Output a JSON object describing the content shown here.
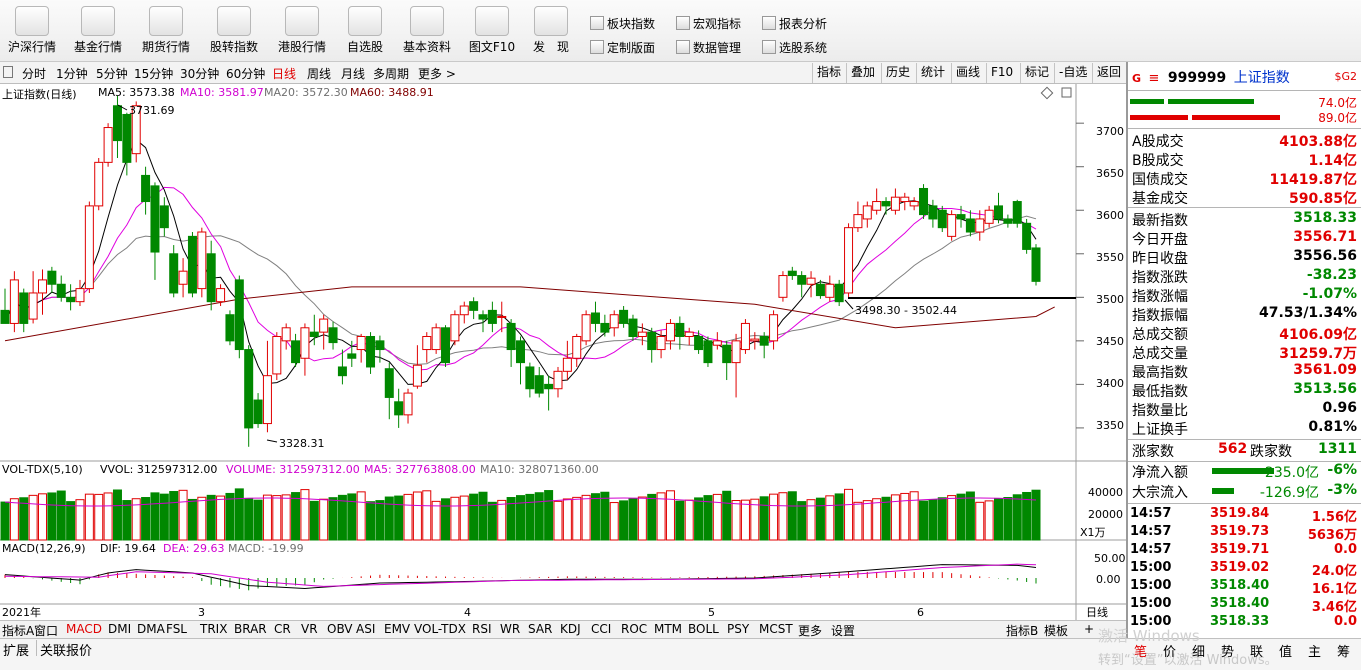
{
  "toolbar": {
    "buttons": [
      {
        "label": "沪深行情",
        "icon": "candle-chart-icon"
      },
      {
        "label": "基金行情",
        "icon": "bar-chart-icon"
      },
      {
        "label": "期货行情",
        "icon": "bar-chart-icon"
      },
      {
        "label": "股转指数",
        "icon": "wave-chart-icon"
      },
      {
        "label": "港股行情",
        "icon": "bag-chart-icon"
      },
      {
        "label": "自选股",
        "icon": "watchlist-icon"
      },
      {
        "label": "基本资料",
        "icon": "key-icon"
      },
      {
        "label": "图文F10",
        "icon": "document-icon"
      },
      {
        "label": "发　现",
        "icon": "discover-chart-icon"
      }
    ],
    "small": [
      {
        "label": "板块指数",
        "icon": "sector-index-icon"
      },
      {
        "label": "宏观指标",
        "icon": "macro-indicator-icon"
      },
      {
        "label": "报表分析",
        "icon": "report-icon"
      },
      {
        "label": "定制版面",
        "icon": "layout-icon"
      },
      {
        "label": "数据管理",
        "icon": "data-manage-icon"
      },
      {
        "label": "选股系统",
        "icon": "stock-picker-icon"
      }
    ]
  },
  "periods": {
    "items": [
      "分时",
      "1分钟",
      "5分钟",
      "15分钟",
      "30分钟",
      "60分钟",
      "日线",
      "周线",
      "月线",
      "多周期",
      "更多 >"
    ],
    "active": "日线"
  },
  "right_tools": [
    "指标",
    "叠加",
    "历史",
    "统计",
    "画线",
    "F10",
    "标记",
    "-自选",
    "返回"
  ],
  "chart": {
    "title": "上证指数(日线)",
    "ma5": "MA5: 3573.38",
    "ma10": "MA10: 3581.97",
    "ma20": "MA20: 3572.30",
    "ma60": "MA60: 3488.91",
    "high_label": "3731.69",
    "low_label": "3328.31",
    "range_label": "3498.30 - 3502.44",
    "price_ticks": [
      "3700",
      "3650",
      "3600",
      "3550",
      "3500",
      "3450",
      "3400",
      "3350"
    ],
    "vol_title": "VOL-TDX(5,10)",
    "vol_text": "VVOL: 312597312.00",
    "volume_text": "VOLUME: 312597312.00",
    "vol_ma5": "MA5: 327763808.00",
    "vol_ma10": "MA10: 328071360.00",
    "vol_ticks": [
      "40000",
      "20000"
    ],
    "vol_unit": "X1万",
    "macd_title": "MACD(12,26,9)",
    "dif": "DIF: 19.64",
    "dea": "DEA: 29.63",
    "macd": "MACD: -19.99",
    "macd_ticks": [
      "50.00",
      "0.00"
    ],
    "date_labels": [
      "2021年",
      "3",
      "4",
      "5",
      "6"
    ],
    "axis_mode": "日线",
    "colors": {
      "up": "#e00000",
      "down": "#008800",
      "ma5": "#000000",
      "ma10": "#e000e0",
      "ma20": "#808080",
      "ma60": "#800000"
    }
  },
  "chart_data": {
    "type": "candlestick",
    "title": "上证指数(日线)",
    "ylim": [
      3312,
      3745
    ],
    "candles": [
      {
        "o": 3485,
        "c": 3470,
        "h": 3510,
        "l": 3470
      },
      {
        "o": 3470,
        "c": 3520,
        "h": 3530,
        "l": 3460
      },
      {
        "o": 3505,
        "c": 3470,
        "h": 3510,
        "l": 3460
      },
      {
        "o": 3475,
        "c": 3505,
        "h": 3530,
        "l": 3470
      },
      {
        "o": 3505,
        "c": 3520,
        "h": 3532,
        "l": 3480
      },
      {
        "o": 3530,
        "c": 3515,
        "h": 3535,
        "l": 3505
      },
      {
        "o": 3515,
        "c": 3500,
        "h": 3525,
        "l": 3495
      },
      {
        "o": 3500,
        "c": 3495,
        "h": 3515,
        "l": 3485
      },
      {
        "o": 3495,
        "c": 3510,
        "h": 3520,
        "l": 3490
      },
      {
        "o": 3510,
        "c": 3605,
        "h": 3610,
        "l": 3505
      },
      {
        "o": 3605,
        "c": 3655,
        "h": 3660,
        "l": 3600
      },
      {
        "o": 3655,
        "c": 3695,
        "h": 3700,
        "l": 3650
      },
      {
        "o": 3720,
        "c": 3680,
        "h": 3731.69,
        "l": 3660
      },
      {
        "o": 3710,
        "c": 3655,
        "h": 3712,
        "l": 3640
      },
      {
        "o": 3665,
        "c": 3720,
        "h": 3725,
        "l": 3655
      },
      {
        "o": 3640,
        "c": 3610,
        "h": 3650,
        "l": 3595
      },
      {
        "o": 3628,
        "c": 3552,
        "h": 3632,
        "l": 3520
      },
      {
        "o": 3605,
        "c": 3580,
        "h": 3615,
        "l": 3570
      },
      {
        "o": 3550,
        "c": 3505,
        "h": 3560,
        "l": 3500
      },
      {
        "o": 3515,
        "c": 3530,
        "h": 3545,
        "l": 3500
      },
      {
        "o": 3570,
        "c": 3505,
        "h": 3575,
        "l": 3500
      },
      {
        "o": 3510,
        "c": 3575,
        "h": 3580,
        "l": 3500
      },
      {
        "o": 3550,
        "c": 3495,
        "h": 3565,
        "l": 3485
      },
      {
        "o": 3495,
        "c": 3510,
        "h": 3515,
        "l": 3490
      },
      {
        "o": 3480,
        "c": 3450,
        "h": 3485,
        "l": 3445
      },
      {
        "o": 3520,
        "c": 3440,
        "h": 3525,
        "l": 3430
      },
      {
        "o": 3440,
        "c": 3350,
        "h": 3445,
        "l": 3328.31
      },
      {
        "o": 3382,
        "c": 3355,
        "h": 3390,
        "l": 3350
      },
      {
        "o": 3355,
        "c": 3410,
        "h": 3450,
        "l": 3345
      },
      {
        "o": 3412,
        "c": 3455,
        "h": 3460,
        "l": 3405
      },
      {
        "o": 3450,
        "c": 3465,
        "h": 3470,
        "l": 3440
      },
      {
        "o": 3450,
        "c": 3425,
        "h": 3458,
        "l": 3420
      },
      {
        "o": 3430,
        "c": 3465,
        "h": 3470,
        "l": 3410
      },
      {
        "o": 3460,
        "c": 3455,
        "h": 3480,
        "l": 3445
      },
      {
        "o": 3460,
        "c": 3475,
        "h": 3480,
        "l": 3440
      },
      {
        "o": 3465,
        "c": 3448,
        "h": 3472,
        "l": 3440
      },
      {
        "o": 3420,
        "c": 3410,
        "h": 3440,
        "l": 3400
      },
      {
        "o": 3435,
        "c": 3430,
        "h": 3450,
        "l": 3420
      },
      {
        "o": 3440,
        "c": 3455,
        "h": 3458,
        "l": 3425
      },
      {
        "o": 3455,
        "c": 3420,
        "h": 3460,
        "l": 3412
      },
      {
        "o": 3450,
        "c": 3440,
        "h": 3456,
        "l": 3425
      },
      {
        "o": 3418,
        "c": 3385,
        "h": 3425,
        "l": 3360
      },
      {
        "o": 3380,
        "c": 3365,
        "h": 3395,
        "l": 3350
      },
      {
        "o": 3365,
        "c": 3390,
        "h": 3395,
        "l": 3355
      },
      {
        "o": 3398,
        "c": 3422,
        "h": 3445,
        "l": 3395
      },
      {
        "o": 3440,
        "c": 3455,
        "h": 3460,
        "l": 3425
      },
      {
        "o": 3440,
        "c": 3465,
        "h": 3470,
        "l": 3435
      },
      {
        "o": 3465,
        "c": 3425,
        "h": 3468,
        "l": 3420
      },
      {
        "o": 3450,
        "c": 3480,
        "h": 3485,
        "l": 3445
      },
      {
        "o": 3480,
        "c": 3490,
        "h": 3495,
        "l": 3470
      },
      {
        "o": 3495,
        "c": 3485,
        "h": 3500,
        "l": 3475
      },
      {
        "o": 3480,
        "c": 3475,
        "h": 3485,
        "l": 3460
      },
      {
        "o": 3485,
        "c": 3470,
        "h": 3495,
        "l": 3460
      },
      {
        "o": 3478,
        "c": 3478,
        "h": 3495,
        "l": 3460
      },
      {
        "o": 3470,
        "c": 3440,
        "h": 3475,
        "l": 3420
      },
      {
        "o": 3450,
        "c": 3425,
        "h": 3455,
        "l": 3400
      },
      {
        "o": 3420,
        "c": 3395,
        "h": 3425,
        "l": 3385
      },
      {
        "o": 3410,
        "c": 3390,
        "h": 3420,
        "l": 3385
      },
      {
        "o": 3400,
        "c": 3395,
        "h": 3410,
        "l": 3370
      },
      {
        "o": 3395,
        "c": 3415,
        "h": 3420,
        "l": 3385
      },
      {
        "o": 3415,
        "c": 3430,
        "h": 3450,
        "l": 3405
      },
      {
        "o": 3430,
        "c": 3455,
        "h": 3458,
        "l": 3420
      },
      {
        "o": 3450,
        "c": 3480,
        "h": 3485,
        "l": 3445
      },
      {
        "o": 3482,
        "c": 3470,
        "h": 3495,
        "l": 3460
      },
      {
        "o": 3470,
        "c": 3460,
        "h": 3480,
        "l": 3455
      },
      {
        "o": 3465,
        "c": 3480,
        "h": 3485,
        "l": 3455
      },
      {
        "o": 3485,
        "c": 3470,
        "h": 3490,
        "l": 3465
      },
      {
        "o": 3475,
        "c": 3455,
        "h": 3480,
        "l": 3450
      },
      {
        "o": 3455,
        "c": 3460,
        "h": 3470,
        "l": 3445
      },
      {
        "o": 3460,
        "c": 3440,
        "h": 3465,
        "l": 3425
      },
      {
        "o": 3440,
        "c": 3455,
        "h": 3462,
        "l": 3430
      },
      {
        "o": 3450,
        "c": 3470,
        "h": 3475,
        "l": 3440
      },
      {
        "o": 3470,
        "c": 3455,
        "h": 3478,
        "l": 3440
      },
      {
        "o": 3455,
        "c": 3460,
        "h": 3465,
        "l": 3445
      },
      {
        "o": 3455,
        "c": 3440,
        "h": 3462,
        "l": 3435
      },
      {
        "o": 3450,
        "c": 3425,
        "h": 3455,
        "l": 3420
      },
      {
        "o": 3445,
        "c": 3450,
        "h": 3460,
        "l": 3440
      },
      {
        "o": 3445,
        "c": 3425,
        "h": 3450,
        "l": 3405
      },
      {
        "o": 3425,
        "c": 3450,
        "h": 3458,
        "l": 3385
      },
      {
        "o": 3440,
        "c": 3470,
        "h": 3475,
        "l": 3435
      },
      {
        "o": 3450,
        "c": 3452,
        "h": 3460,
        "l": 3440
      },
      {
        "o": 3455,
        "c": 3445,
        "h": 3460,
        "l": 3430
      },
      {
        "o": 3450,
        "c": 3480,
        "h": 3485,
        "l": 3440
      },
      {
        "o": 3500,
        "c": 3525,
        "h": 3530,
        "l": 3495
      },
      {
        "o": 3530,
        "c": 3525,
        "h": 3535,
        "l": 3520
      },
      {
        "o": 3525,
        "c": 3515,
        "h": 3530,
        "l": 3500
      },
      {
        "o": 3515,
        "c": 3522,
        "h": 3530,
        "l": 3500
      },
      {
        "o": 3515,
        "c": 3502,
        "h": 3520,
        "l": 3498.3
      },
      {
        "o": 3500,
        "c": 3515,
        "h": 3525,
        "l": 3495
      },
      {
        "o": 3515,
        "c": 3495,
        "h": 3520,
        "l": 3490
      },
      {
        "o": 3505,
        "c": 3580,
        "h": 3585,
        "l": 3500
      },
      {
        "o": 3580,
        "c": 3595,
        "h": 3610,
        "l": 3575
      },
      {
        "o": 3590,
        "c": 3605,
        "h": 3610,
        "l": 3580
      },
      {
        "o": 3600,
        "c": 3610,
        "h": 3625,
        "l": 3595
      },
      {
        "o": 3610,
        "c": 3605,
        "h": 3615,
        "l": 3595
      },
      {
        "o": 3600,
        "c": 3615,
        "h": 3625,
        "l": 3595
      },
      {
        "o": 3610,
        "c": 3615,
        "h": 3620,
        "l": 3600
      },
      {
        "o": 3605,
        "c": 3610,
        "h": 3615,
        "l": 3600
      },
      {
        "o": 3625,
        "c": 3595,
        "h": 3630,
        "l": 3590
      },
      {
        "o": 3605,
        "c": 3590,
        "h": 3612,
        "l": 3580
      },
      {
        "o": 3600,
        "c": 3580,
        "h": 3605,
        "l": 3575
      },
      {
        "o": 3570,
        "c": 3595,
        "h": 3600,
        "l": 3565
      },
      {
        "o": 3595,
        "c": 3590,
        "h": 3605,
        "l": 3580
      },
      {
        "o": 3590,
        "c": 3575,
        "h": 3600,
        "l": 3570
      },
      {
        "o": 3575,
        "c": 3590,
        "h": 3600,
        "l": 3565
      },
      {
        "o": 3585,
        "c": 3600,
        "h": 3605,
        "l": 3580
      },
      {
        "o": 3605,
        "c": 3590,
        "h": 3620,
        "l": 3585
      },
      {
        "o": 3590,
        "c": 3585,
        "h": 3595,
        "l": 3580
      },
      {
        "o": 3610,
        "c": 3585,
        "h": 3612,
        "l": 3580
      },
      {
        "o": 3585,
        "c": 3555,
        "h": 3590,
        "l": 3550
      },
      {
        "o": 3556.71,
        "c": 3518.33,
        "h": 3561.09,
        "l": 3513.56
      }
    ],
    "ma60": [
      [
        0,
        3450
      ],
      [
        25,
        3498
      ],
      [
        37,
        3512
      ],
      [
        55,
        3512
      ],
      [
        80,
        3492
      ],
      [
        95,
        3465
      ],
      [
        110,
        3478
      ],
      [
        112,
        3489
      ]
    ],
    "macd_dif": [
      [
        0,
        8
      ],
      [
        8,
        -5
      ],
      [
        11,
        12
      ],
      [
        14,
        20
      ],
      [
        20,
        12
      ],
      [
        26,
        -18
      ],
      [
        32,
        -25
      ],
      [
        40,
        -12
      ],
      [
        50,
        -8
      ],
      [
        60,
        -3
      ],
      [
        70,
        -3
      ],
      [
        80,
        0
      ],
      [
        88,
        12
      ],
      [
        100,
        32
      ],
      [
        108,
        30
      ],
      [
        112,
        20
      ]
    ],
    "macd_dea": [
      [
        0,
        4
      ],
      [
        10,
        2
      ],
      [
        14,
        15
      ],
      [
        22,
        10
      ],
      [
        28,
        -10
      ],
      [
        34,
        -20
      ],
      [
        44,
        -13
      ],
      [
        54,
        -6
      ],
      [
        66,
        -4
      ],
      [
        80,
        -2
      ],
      [
        90,
        8
      ],
      [
        100,
        25
      ],
      [
        108,
        33
      ],
      [
        112,
        30
      ]
    ]
  },
  "right_panel": {
    "code": "999999",
    "name": "上证指数",
    "badge": "$G2",
    "bar1": "74.0亿",
    "bar2": "89.0亿",
    "rows1": [
      {
        "k": "A股成交",
        "v": "4103.88亿",
        "c": "red"
      },
      {
        "k": "B股成交",
        "v": "1.14亿",
        "c": "red"
      },
      {
        "k": "国债成交",
        "v": "11419.87亿",
        "c": "red"
      },
      {
        "k": "基金成交",
        "v": "590.85亿",
        "c": "red"
      }
    ],
    "rows2": [
      {
        "k": "最新指数",
        "v": "3518.33",
        "c": "green"
      },
      {
        "k": "今日开盘",
        "v": "3556.71",
        "c": "red"
      },
      {
        "k": "昨日收盘",
        "v": "3556.56",
        "c": "blk"
      },
      {
        "k": "指数涨跌",
        "v": "-38.23",
        "c": "green"
      },
      {
        "k": "指数涨幅",
        "v": "-1.07%",
        "c": "green"
      },
      {
        "k": "指数振幅",
        "v": "47.53/1.34%",
        "c": "blk"
      },
      {
        "k": "总成交额",
        "v": "4106.09亿",
        "c": "red"
      },
      {
        "k": "总成交量",
        "v": "31259.7万",
        "c": "red"
      },
      {
        "k": "最高指数",
        "v": "3561.09",
        "c": "red"
      },
      {
        "k": "最低指数",
        "v": "3513.56",
        "c": "green"
      },
      {
        "k": "指数量比",
        "v": "0.96",
        "c": "blk"
      },
      {
        "k": "上证换手",
        "v": "0.81%",
        "c": "blk"
      }
    ],
    "rise_label": "涨家数",
    "rise": "562",
    "fall_label": "跌家数",
    "fall": "1311",
    "flow": [
      {
        "k": "净流入额",
        "v": "-235.0亿",
        "p": "-6%"
      },
      {
        "k": "大宗流入",
        "v": "-126.9亿",
        "p": "-3%"
      }
    ],
    "ticks": [
      {
        "t": "14:57",
        "p": "3519.84",
        "v": "1.56亿"
      },
      {
        "t": "14:57",
        "p": "3519.73",
        "v": "5636万"
      },
      {
        "t": "14:57",
        "p": "3519.71",
        "v": "0.0"
      },
      {
        "t": "15:00",
        "p": "3519.02",
        "v": "24.0亿"
      },
      {
        "t": "15:00",
        "p": "3518.40",
        "v": "16.1亿"
      },
      {
        "t": "15:00",
        "p": "3518.40",
        "v": "3.46亿"
      },
      {
        "t": "15:00",
        "p": "3518.33",
        "v": "0.0"
      }
    ]
  },
  "bottom_tabs": [
    "指标A",
    "窗口",
    "MACD",
    "DMI",
    "DMA",
    "FSL",
    "TRIX",
    "BRAR",
    "CR",
    "VR",
    "OBV",
    "ASI",
    "EMV",
    "VOL-TDX",
    "RSI",
    "WR",
    "SAR",
    "KDJ",
    "CCI",
    "ROC",
    "MTM",
    "BOLL",
    "PSY",
    "MCST",
    "更多",
    "设置"
  ],
  "bottom_right": [
    "指标B",
    "模板",
    "+"
  ],
  "footer": {
    "left": [
      "扩展",
      "关联报价"
    ],
    "right": [
      "笔",
      "价",
      "细",
      "势",
      "联",
      "值",
      "主",
      "筹"
    ],
    "watermark1": "激活 Windows",
    "watermark2": "转到“设置”以激活 Windows。"
  }
}
